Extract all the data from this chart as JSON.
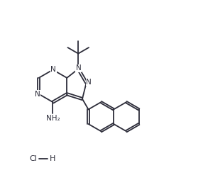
{
  "bg_color": "#ffffff",
  "line_color": "#2d2d3a",
  "font_color": "#2d2d3a",
  "figsize": [
    2.86,
    2.54
  ],
  "dpi": 100,
  "lw": 1.3,
  "xlim": [
    -0.7,
    3.1
  ],
  "ylim": [
    -2.3,
    2.1
  ]
}
